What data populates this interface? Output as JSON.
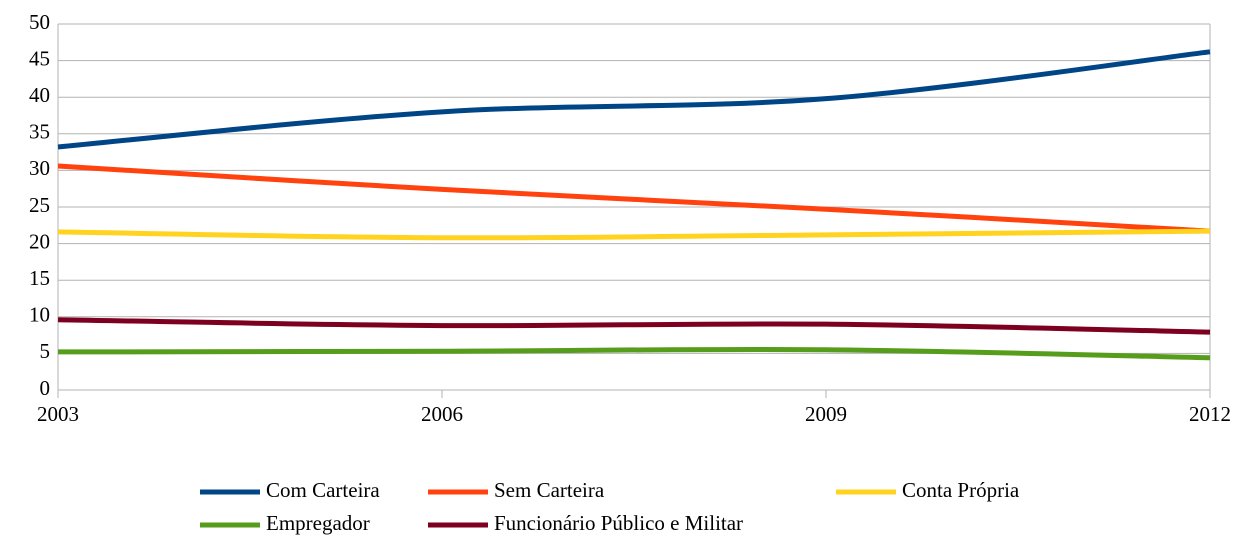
{
  "chart_data": {
    "type": "line",
    "x": [
      2003,
      2006,
      2009,
      2012
    ],
    "xlim": [
      2003,
      2012
    ],
    "xticks": [
      2003,
      2006,
      2009,
      2012
    ],
    "ylim": [
      0,
      50
    ],
    "yticks": [
      0,
      5,
      10,
      15,
      20,
      25,
      30,
      35,
      40,
      45,
      50
    ],
    "grid": true,
    "legend": "bottom",
    "series": [
      {
        "name": "Com Carteira",
        "color": "#004586",
        "values": [
          33.2,
          38.0,
          39.8,
          46.2
        ]
      },
      {
        "name": "Sem Carteira",
        "color": "#ff420e",
        "values": [
          30.6,
          27.4,
          24.7,
          21.7
        ]
      },
      {
        "name": "Conta Própria",
        "color": "#ffd320",
        "values": [
          21.6,
          20.8,
          21.2,
          21.7
        ]
      },
      {
        "name": "Empregador",
        "color": "#579d1c",
        "values": [
          5.2,
          5.3,
          5.5,
          4.4
        ]
      },
      {
        "name": "Funcionário Público e Militar",
        "color": "#7e0021",
        "values": [
          9.6,
          8.8,
          9.0,
          7.9
        ]
      }
    ]
  }
}
